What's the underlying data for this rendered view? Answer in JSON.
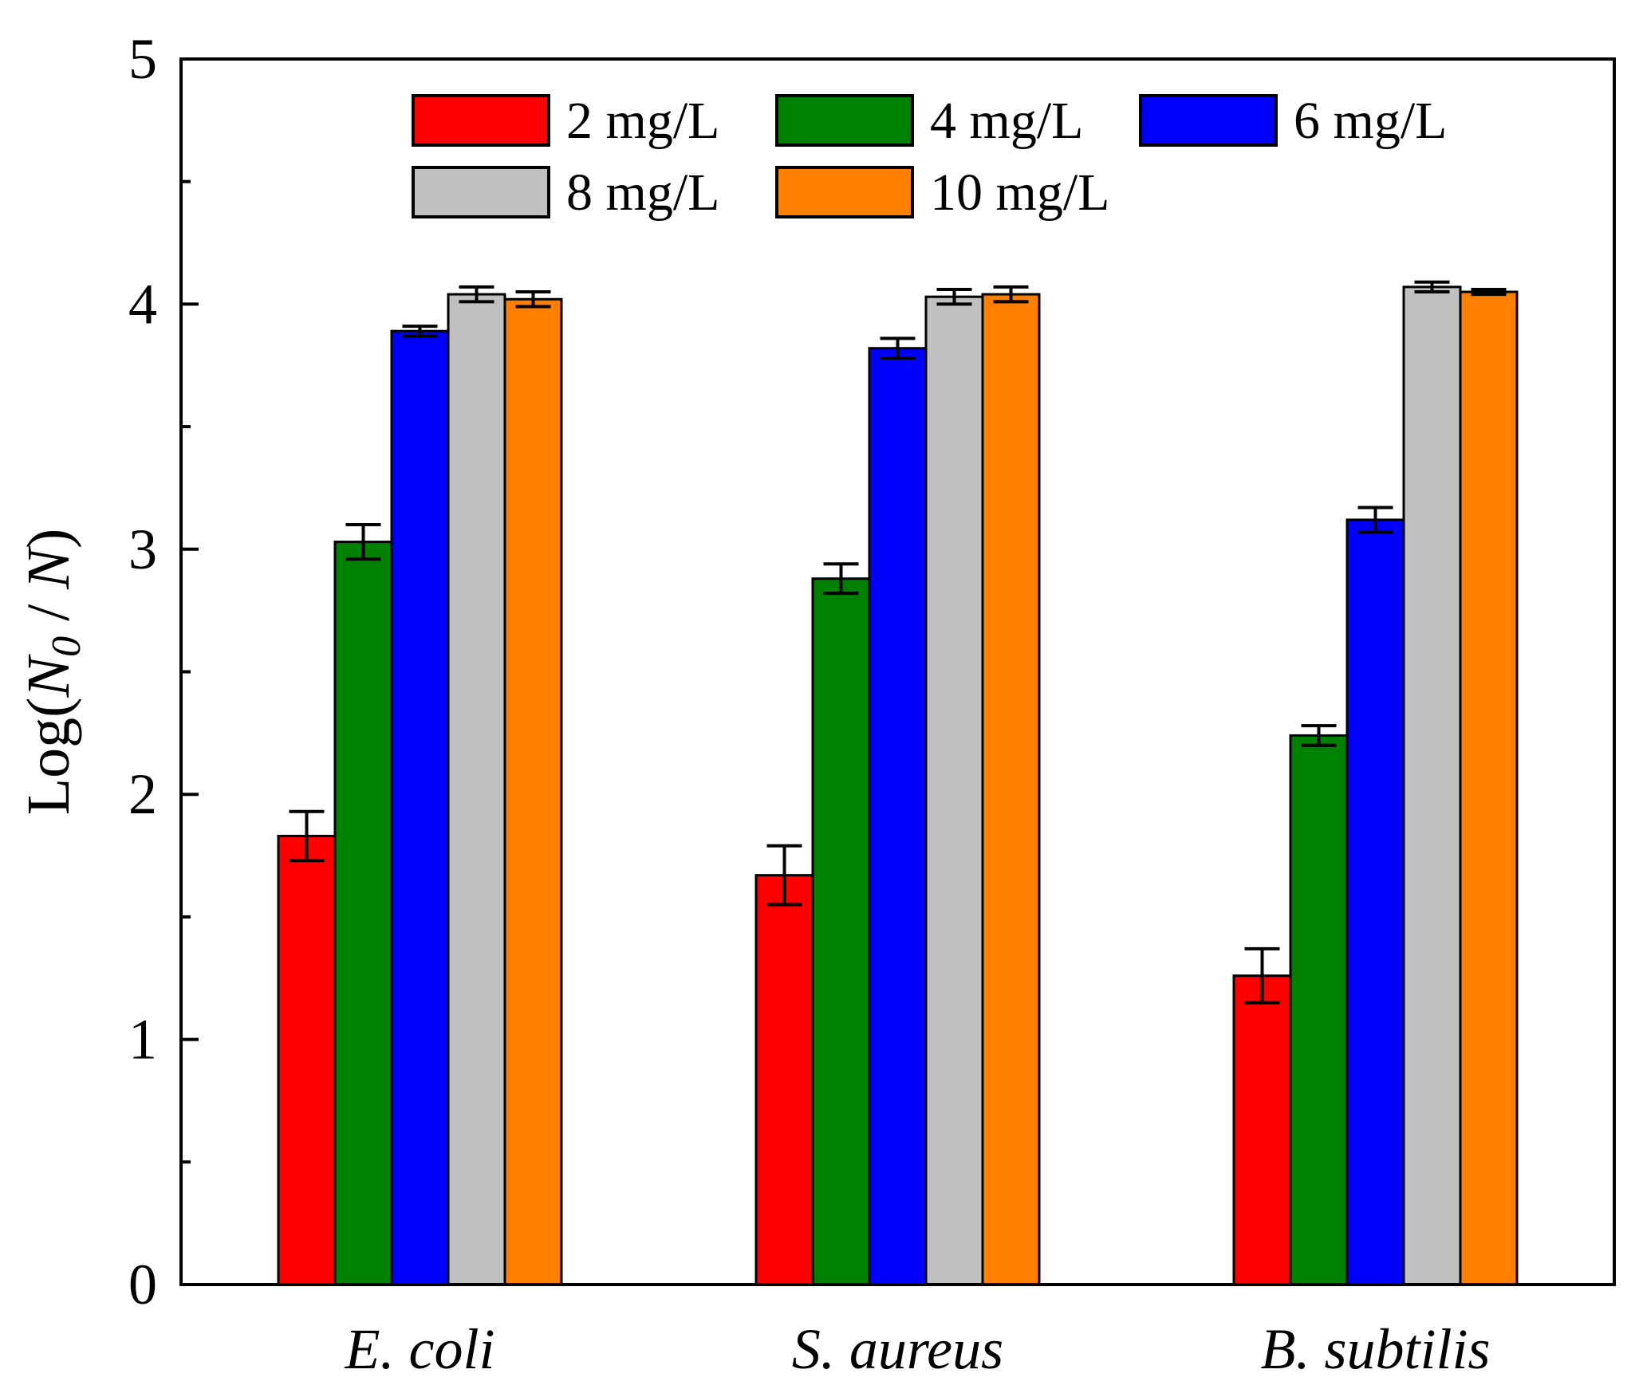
{
  "chart_data": {
    "type": "bar",
    "title": "",
    "xlabel": "",
    "ylabel": {
      "prefix": "Log(",
      "n0_base": "N",
      "n0_sub": "0",
      "sep": " / ",
      "n_base": "N",
      "suffix": ")"
    },
    "ylim": [
      0,
      5
    ],
    "yticks": [
      "0",
      "1",
      "2",
      "3",
      "4",
      "5"
    ],
    "minor_ticks": [
      0.5,
      1.5,
      2.5,
      3.5,
      4.5
    ],
    "grid": false,
    "legend_position": "top",
    "categories": [
      "E. coli",
      "S. aureus",
      "B. subtilis"
    ],
    "series": [
      {
        "name": "2 mg/L",
        "color": "#ff0000",
        "values": [
          1.83,
          1.67,
          1.26
        ],
        "errors": [
          0.1,
          0.12,
          0.11
        ]
      },
      {
        "name": "4 mg/L",
        "color": "#008000",
        "values": [
          3.03,
          2.88,
          2.24
        ],
        "errors": [
          0.07,
          0.06,
          0.04
        ]
      },
      {
        "name": "6 mg/L",
        "color": "#0000ff",
        "values": [
          3.89,
          3.82,
          3.12
        ],
        "errors": [
          0.02,
          0.04,
          0.05
        ]
      },
      {
        "name": "8 mg/L",
        "color": "#c0c0c0",
        "values": [
          4.04,
          4.03,
          4.07
        ],
        "errors": [
          0.03,
          0.03,
          0.02
        ]
      },
      {
        "name": "10 mg/L",
        "color": "#ff8000",
        "values": [
          4.02,
          4.04,
          4.05
        ],
        "errors": [
          0.03,
          0.03,
          0.01
        ]
      }
    ]
  }
}
